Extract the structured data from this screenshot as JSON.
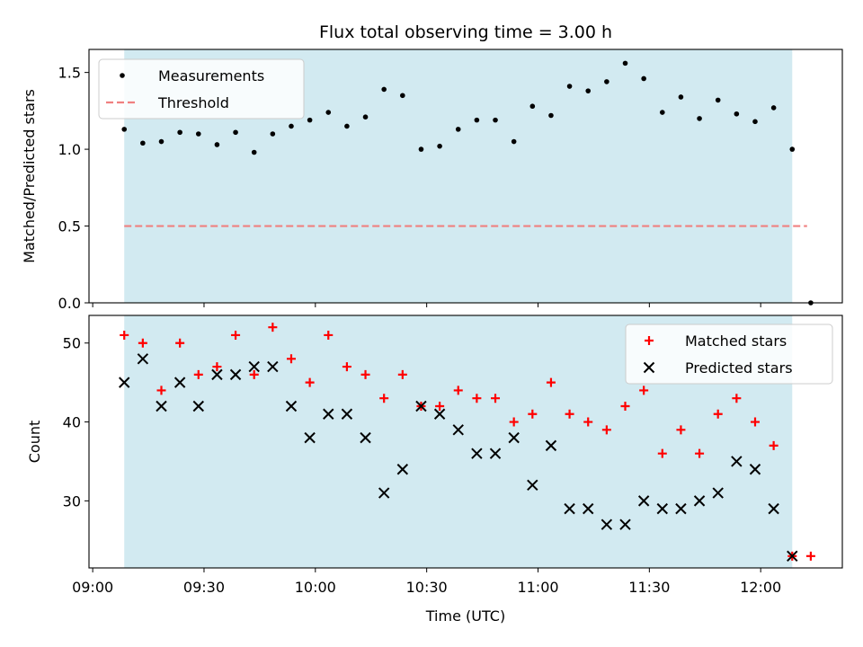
{
  "chart_data": {
    "type": "scatter",
    "title": "Flux total observing time = 3.00 h",
    "xlabel": "Time (UTC)",
    "x_ticks": [
      "09:00",
      "09:30",
      "10:00",
      "10:30",
      "11:00",
      "11:30",
      "12:00"
    ],
    "x_tick_minutes": [
      540,
      570,
      600,
      630,
      660,
      690,
      720
    ],
    "xlim_minutes": [
      539,
      742
    ],
    "observing_window_minutes": [
      548.5,
      728.5
    ],
    "shade_color": "#add8e6",
    "panels": [
      {
        "ylabel": "Matched/Predicted stars",
        "ylim": [
          0,
          1.65
        ],
        "y_ticks": [
          0.0,
          0.5,
          1.0,
          1.5
        ],
        "y_tick_labels": [
          "0.0",
          "0.5",
          "1.0",
          "1.5"
        ],
        "legend_position": "top-left",
        "series": [
          {
            "name": "Measurements",
            "marker": "dot",
            "color": "#000000",
            "x": [
              548.5,
              553.5,
              558.5,
              563.5,
              568.5,
              573.5,
              578.5,
              583.5,
              588.5,
              593.5,
              598.5,
              603.5,
              608.5,
              613.5,
              618.5,
              623.5,
              628.5,
              633.5,
              638.5,
              643.5,
              648.5,
              653.5,
              658.5,
              663.5,
              668.5,
              673.5,
              678.5,
              683.5,
              688.5,
              693.5,
              698.5,
              703.5,
              708.5,
              713.5,
              718.5,
              723.5,
              728.5,
              733.5
            ],
            "y": [
              1.13,
              1.04,
              1.05,
              1.11,
              1.1,
              1.03,
              1.11,
              0.98,
              1.1,
              1.15,
              1.19,
              1.24,
              1.15,
              1.21,
              1.39,
              1.35,
              1.0,
              1.02,
              1.13,
              1.19,
              1.19,
              1.05,
              1.28,
              1.22,
              1.41,
              1.38,
              1.44,
              1.56,
              1.46,
              1.24,
              1.34,
              1.2,
              1.32,
              1.23,
              1.18,
              1.27,
              1.0,
              0.0
            ]
          },
          {
            "name": "Threshold",
            "marker": "dashed-line",
            "color": "#f08080",
            "x": [
              548.5,
              732.5
            ],
            "y": [
              0.5,
              0.5
            ]
          }
        ]
      },
      {
        "ylabel": "Count",
        "ylim": [
          21.5,
          53.5
        ],
        "y_ticks": [
          30,
          40,
          50
        ],
        "y_tick_labels": [
          "30",
          "40",
          "50"
        ],
        "legend_position": "top-right",
        "series": [
          {
            "name": "Matched stars",
            "marker": "plus",
            "color": "#ff0000",
            "x": [
              548.5,
              553.5,
              558.5,
              563.5,
              568.5,
              573.5,
              578.5,
              583.5,
              588.5,
              593.5,
              598.5,
              603.5,
              608.5,
              613.5,
              618.5,
              623.5,
              628.5,
              633.5,
              638.5,
              643.5,
              648.5,
              653.5,
              658.5,
              663.5,
              668.5,
              673.5,
              678.5,
              683.5,
              688.5,
              693.5,
              698.5,
              703.5,
              708.5,
              713.5,
              718.5,
              723.5,
              728.5,
              733.5
            ],
            "y": [
              51,
              50,
              44,
              50,
              46,
              47,
              51,
              46,
              52,
              48,
              45,
              51,
              47,
              46,
              43,
              46,
              42,
              42,
              44,
              43,
              43,
              40,
              41,
              45,
              41,
              40,
              39,
              42,
              44,
              36,
              39,
              36,
              41,
              43,
              40,
              37,
              23,
              23
            ]
          },
          {
            "name": "Predicted stars",
            "marker": "x",
            "color": "#000000",
            "x": [
              548.5,
              553.5,
              558.5,
              563.5,
              568.5,
              573.5,
              578.5,
              583.5,
              588.5,
              593.5,
              598.5,
              603.5,
              608.5,
              613.5,
              618.5,
              623.5,
              628.5,
              633.5,
              638.5,
              643.5,
              648.5,
              653.5,
              658.5,
              663.5,
              668.5,
              673.5,
              678.5,
              683.5,
              688.5,
              693.5,
              698.5,
              703.5,
              708.5,
              713.5,
              718.5,
              723.5,
              728.5
            ],
            "y": [
              45,
              48,
              42,
              45,
              42,
              46,
              46,
              47,
              47,
              42,
              38,
              41,
              41,
              38,
              31,
              34,
              42,
              41,
              39,
              36,
              36,
              38,
              32,
              37,
              29,
              29,
              27,
              27,
              30,
              29,
              29,
              30,
              31,
              35,
              34,
              29,
              23
            ]
          }
        ]
      }
    ]
  }
}
